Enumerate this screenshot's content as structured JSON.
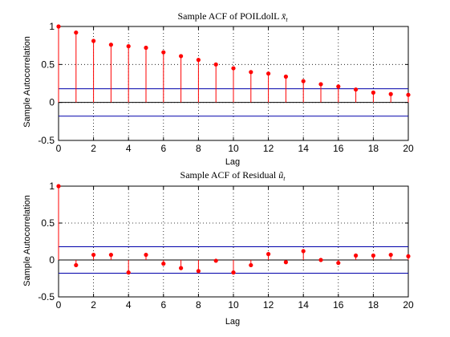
{
  "chart_data": [
    {
      "type": "stem",
      "title": "Sample ACF of POILdolL ",
      "title_symbol": "x̄",
      "title_sub": "t",
      "xlabel": "Lag",
      "ylabel": "Sample Autocorrelation",
      "xlim": [
        0,
        20
      ],
      "ylim": [
        -0.5,
        1
      ],
      "xticks": [
        0,
        2,
        4,
        6,
        8,
        10,
        12,
        14,
        16,
        18,
        20
      ],
      "yticks": [
        -0.5,
        0,
        0.5,
        1
      ],
      "ytick_labels": [
        "-0.5",
        "0",
        "0.5",
        "1"
      ],
      "grid": true,
      "confidence_bounds": [
        0.18,
        -0.18
      ],
      "x": [
        0,
        1,
        2,
        3,
        4,
        5,
        6,
        7,
        8,
        9,
        10,
        11,
        12,
        13,
        14,
        15,
        16,
        17,
        18,
        19,
        20
      ],
      "values": [
        1.0,
        0.92,
        0.81,
        0.76,
        0.74,
        0.72,
        0.66,
        0.61,
        0.56,
        0.5,
        0.45,
        0.4,
        0.38,
        0.34,
        0.28,
        0.24,
        0.21,
        0.17,
        0.13,
        0.11,
        0.1
      ],
      "colors": {
        "stem": "#ff0000",
        "bound": "#0000aa",
        "baseline": "#000000"
      }
    },
    {
      "type": "stem",
      "title": "Sample ACF of Residual ",
      "title_symbol": "ũ",
      "title_sub": "t",
      "xlabel": "Lag",
      "ylabel": "Sample Autocorrelation",
      "xlim": [
        0,
        20
      ],
      "ylim": [
        -0.5,
        1
      ],
      "xticks": [
        0,
        2,
        4,
        6,
        8,
        10,
        12,
        14,
        16,
        18,
        20
      ],
      "yticks": [
        -0.5,
        0,
        0.5,
        1
      ],
      "ytick_labels": [
        "-0.5",
        "0",
        "0.5",
        "1"
      ],
      "grid": true,
      "confidence_bounds": [
        0.18,
        -0.18
      ],
      "x": [
        0,
        1,
        2,
        3,
        4,
        5,
        6,
        7,
        8,
        9,
        10,
        11,
        12,
        13,
        14,
        15,
        16,
        17,
        18,
        19,
        20
      ],
      "values": [
        1.0,
        -0.07,
        0.07,
        0.07,
        -0.17,
        0.07,
        -0.05,
        -0.11,
        -0.15,
        -0.01,
        -0.17,
        -0.07,
        0.08,
        -0.03,
        0.12,
        0.0,
        -0.04,
        0.06,
        0.06,
        0.07,
        0.05
      ],
      "colors": {
        "stem": "#ff0000",
        "bound": "#0000aa",
        "baseline": "#000000"
      }
    }
  ]
}
